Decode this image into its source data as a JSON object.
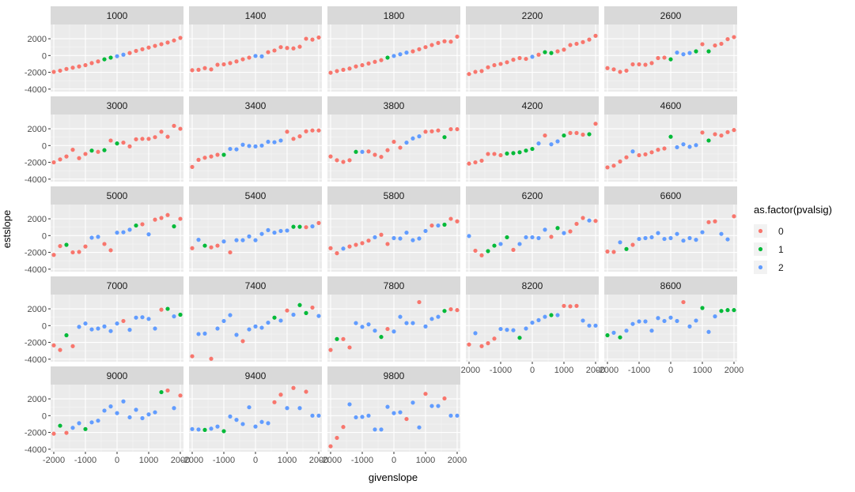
{
  "chart_data": {
    "type": "scatter",
    "title": "",
    "xlabel": "givenslope",
    "ylabel": "estslope",
    "xlim": [
      -2100,
      2100
    ],
    "ylim": [
      -4300,
      3700
    ],
    "x_ticks": [
      -2000,
      -1000,
      0,
      1000,
      2000
    ],
    "y_ticks": [
      -4000,
      -2000,
      0,
      2000
    ],
    "x_tick_labels": [
      "-2000",
      "-1000",
      "0",
      "1000",
      "2000"
    ],
    "y_tick_labels": [
      "-4000",
      "-2000",
      "0",
      "2000"
    ],
    "x": [
      -2000,
      -1800,
      -1600,
      -1400,
      -1200,
      -1000,
      -800,
      -600,
      -400,
      -200,
      0,
      200,
      400,
      600,
      800,
      1000,
      1200,
      1400,
      1600,
      1800,
      2000
    ],
    "legend": {
      "title": "as.factor(pvalsig)",
      "entries": [
        {
          "label": "0",
          "color": "#F8766D"
        },
        {
          "label": "1",
          "color": "#00BA38"
        },
        {
          "label": "2",
          "color": "#619CFF"
        }
      ],
      "position": "right"
    },
    "panels": [
      {
        "label": "1000",
        "y": [
          -1950,
          -1800,
          -1600,
          -1450,
          -1300,
          -1150,
          -900,
          -700,
          -450,
          -250,
          -80,
          100,
          300,
          550,
          750,
          950,
          1150,
          1350,
          1550,
          1800,
          2100
        ],
        "group": [
          0,
          0,
          0,
          0,
          0,
          0,
          0,
          0,
          1,
          1,
          2,
          2,
          0,
          0,
          0,
          0,
          0,
          0,
          0,
          0,
          0
        ]
      },
      {
        "label": "1400",
        "y": [
          -1750,
          -1700,
          -1500,
          -1650,
          -1100,
          -1050,
          -900,
          -700,
          -450,
          -250,
          -50,
          -100,
          400,
          600,
          1000,
          900,
          850,
          1050,
          2000,
          1900,
          2150
        ],
        "group": [
          0,
          0,
          0,
          0,
          0,
          0,
          0,
          0,
          0,
          0,
          2,
          2,
          0,
          0,
          0,
          0,
          0,
          0,
          0,
          0,
          0
        ]
      },
      {
        "label": "1800",
        "y": [
          -2050,
          -1850,
          -1700,
          -1550,
          -1300,
          -1150,
          -950,
          -750,
          -550,
          -250,
          -50,
          150,
          350,
          500,
          750,
          1000,
          1250,
          1500,
          1700,
          1650,
          2250
        ],
        "group": [
          0,
          0,
          0,
          0,
          0,
          0,
          0,
          0,
          0,
          1,
          2,
          2,
          2,
          0,
          0,
          0,
          0,
          0,
          0,
          0,
          0
        ]
      },
      {
        "label": "2200",
        "y": [
          -2200,
          -1950,
          -1850,
          -1400,
          -1150,
          -1000,
          -800,
          -500,
          -300,
          -400,
          -150,
          100,
          400,
          300,
          500,
          700,
          1250,
          1400,
          1600,
          1900,
          2350
        ],
        "group": [
          0,
          0,
          0,
          0,
          0,
          0,
          0,
          0,
          0,
          0,
          2,
          0,
          1,
          1,
          0,
          0,
          0,
          0,
          0,
          0,
          0
        ]
      },
      {
        "label": "2600",
        "y": [
          -1500,
          -1650,
          -1950,
          -1800,
          -1050,
          -1050,
          -1100,
          -900,
          -300,
          -250,
          -450,
          350,
          150,
          300,
          500,
          1350,
          500,
          1200,
          1400,
          1950,
          2200
        ],
        "group": [
          0,
          0,
          0,
          0,
          0,
          0,
          0,
          0,
          0,
          0,
          1,
          2,
          2,
          2,
          1,
          0,
          1,
          0,
          0,
          0,
          0
        ]
      },
      {
        "label": "3000",
        "y": [
          -2000,
          -1650,
          -1300,
          -500,
          -1500,
          -1000,
          -600,
          -750,
          -550,
          600,
          250,
          350,
          -100,
          750,
          800,
          800,
          1000,
          1650,
          1050,
          2350,
          2000
        ],
        "group": [
          0,
          0,
          0,
          0,
          0,
          0,
          1,
          0,
          1,
          0,
          1,
          0,
          0,
          0,
          0,
          0,
          0,
          0,
          0,
          0,
          0
        ]
      },
      {
        "label": "3400",
        "y": [
          -2550,
          -1700,
          -1450,
          -1300,
          -1100,
          -1100,
          -400,
          -450,
          100,
          -50,
          -100,
          0,
          450,
          400,
          600,
          1650,
          800,
          1100,
          1700,
          1800,
          1800
        ],
        "group": [
          0,
          0,
          0,
          0,
          0,
          1,
          2,
          2,
          2,
          2,
          2,
          2,
          2,
          2,
          2,
          0,
          0,
          0,
          0,
          0,
          0
        ]
      },
      {
        "label": "3800",
        "y": [
          -1300,
          -1750,
          -1950,
          -1750,
          -750,
          -750,
          -700,
          -1100,
          -1350,
          -550,
          450,
          -250,
          350,
          850,
          1100,
          1650,
          1700,
          1800,
          1000,
          1950,
          1950
        ],
        "group": [
          0,
          0,
          0,
          0,
          1,
          2,
          0,
          0,
          0,
          0,
          0,
          0,
          2,
          2,
          2,
          0,
          0,
          0,
          1,
          0,
          0
        ]
      },
      {
        "label": "4200",
        "y": [
          -2150,
          -2000,
          -1800,
          -1000,
          -1000,
          -1150,
          -950,
          -900,
          -800,
          -600,
          -400,
          250,
          1200,
          150,
          500,
          1200,
          1500,
          1500,
          1300,
          1350,
          2600
        ],
        "group": [
          0,
          0,
          0,
          0,
          0,
          0,
          1,
          1,
          1,
          1,
          1,
          2,
          0,
          2,
          2,
          1,
          0,
          0,
          0,
          1,
          0
        ]
      },
      {
        "label": "4600",
        "y": [
          -2600,
          -2400,
          -1900,
          -1400,
          -700,
          -1150,
          -1050,
          -800,
          -500,
          -350,
          1050,
          -200,
          150,
          -150,
          50,
          1550,
          600,
          1350,
          1200,
          1600,
          1850
        ],
        "group": [
          0,
          0,
          0,
          0,
          2,
          0,
          0,
          0,
          0,
          0,
          1,
          2,
          2,
          2,
          2,
          0,
          1,
          0,
          0,
          0,
          0
        ]
      },
      {
        "label": "5000",
        "y": [
          -2300,
          -1250,
          -1100,
          -2000,
          -1950,
          -1300,
          -250,
          -150,
          -1000,
          -1750,
          350,
          400,
          700,
          1200,
          1350,
          150,
          1900,
          2100,
          2450,
          1100,
          2000
        ],
        "group": [
          0,
          0,
          1,
          0,
          0,
          0,
          2,
          2,
          0,
          0,
          2,
          2,
          2,
          1,
          0,
          2,
          0,
          0,
          0,
          1,
          0
        ]
      },
      {
        "label": "5400",
        "y": [
          -1500,
          -500,
          -1200,
          -1400,
          -1200,
          -700,
          -2000,
          -550,
          -550,
          -100,
          -550,
          200,
          650,
          350,
          550,
          600,
          1050,
          1050,
          1000,
          1100,
          1500
        ],
        "group": [
          0,
          2,
          1,
          0,
          0,
          2,
          0,
          2,
          2,
          2,
          2,
          2,
          2,
          2,
          2,
          2,
          1,
          1,
          0,
          2,
          0
        ]
      },
      {
        "label": "5800",
        "y": [
          -1500,
          -2100,
          -1550,
          -1300,
          -1100,
          -900,
          -600,
          -200,
          100,
          -1000,
          -300,
          -350,
          350,
          -550,
          -350,
          550,
          1200,
          1200,
          1300,
          2000,
          1700
        ],
        "group": [
          0,
          0,
          2,
          0,
          0,
          0,
          0,
          2,
          0,
          0,
          2,
          2,
          2,
          2,
          2,
          2,
          0,
          2,
          1,
          0,
          0
        ]
      },
      {
        "label": "6200",
        "y": [
          -50,
          -1800,
          -2350,
          -1850,
          -1200,
          -1000,
          -200,
          -1700,
          -1000,
          -200,
          -200,
          -300,
          700,
          -150,
          900,
          300,
          500,
          1400,
          2100,
          1800,
          1750
        ],
        "group": [
          2,
          0,
          0,
          1,
          1,
          2,
          1,
          0,
          2,
          2,
          2,
          2,
          2,
          0,
          1,
          2,
          0,
          0,
          0,
          2,
          0
        ]
      },
      {
        "label": "6600",
        "y": [
          -1900,
          -1950,
          -800,
          -1600,
          -1100,
          -400,
          -300,
          -200,
          300,
          -400,
          -300,
          200,
          -600,
          -300,
          -500,
          400,
          1600,
          1700,
          200,
          -450,
          2300
        ],
        "group": [
          0,
          0,
          2,
          1,
          0,
          2,
          2,
          2,
          2,
          2,
          2,
          2,
          2,
          2,
          2,
          2,
          0,
          0,
          2,
          2,
          0
        ]
      },
      {
        "label": "7000",
        "y": [
          -2350,
          -2900,
          -1150,
          -2450,
          -150,
          250,
          -450,
          -350,
          -100,
          -650,
          250,
          550,
          -500,
          950,
          1000,
          800,
          -350,
          1900,
          2000,
          1100,
          1300
        ],
        "group": [
          0,
          0,
          1,
          0,
          2,
          2,
          2,
          2,
          2,
          2,
          2,
          0,
          2,
          2,
          2,
          2,
          2,
          0,
          1,
          2,
          1
        ]
      },
      {
        "label": "7400",
        "y": [
          -3650,
          -1000,
          -950,
          -3950,
          -350,
          550,
          1250,
          -1100,
          -1850,
          -450,
          -100,
          -250,
          350,
          950,
          600,
          1800,
          1300,
          2450,
          1500,
          2150,
          1150
        ],
        "group": [
          0,
          2,
          2,
          0,
          2,
          2,
          2,
          2,
          0,
          2,
          2,
          2,
          2,
          1,
          2,
          0,
          2,
          1,
          1,
          0,
          2
        ]
      },
      {
        "label": "7800",
        "y": [
          -2900,
          -1600,
          -1600,
          -2600,
          300,
          -150,
          150,
          -600,
          -1350,
          -400,
          -700,
          1050,
          300,
          300,
          2800,
          -100,
          800,
          1050,
          1750,
          1950,
          1850
        ],
        "group": [
          0,
          1,
          0,
          0,
          2,
          2,
          2,
          2,
          1,
          0,
          2,
          2,
          2,
          2,
          0,
          2,
          2,
          2,
          1,
          0,
          0
        ]
      },
      {
        "label": "8200",
        "y": [
          -2250,
          -900,
          -2450,
          -2100,
          -1550,
          -400,
          -500,
          -550,
          -1450,
          -350,
          350,
          650,
          1050,
          1250,
          1250,
          2350,
          2300,
          2350,
          600,
          0,
          0
        ],
        "group": [
          0,
          2,
          0,
          0,
          0,
          2,
          2,
          2,
          1,
          2,
          2,
          2,
          2,
          1,
          2,
          0,
          0,
          0,
          2,
          2,
          2
        ]
      },
      {
        "label": "8600",
        "y": [
          -1150,
          -850,
          -1400,
          -600,
          200,
          500,
          500,
          -600,
          900,
          550,
          950,
          550,
          2800,
          -100,
          600,
          2100,
          -750,
          1100,
          1750,
          1850,
          1850
        ],
        "group": [
          1,
          2,
          1,
          2,
          2,
          2,
          2,
          2,
          2,
          2,
          2,
          2,
          0,
          2,
          2,
          1,
          2,
          2,
          1,
          1,
          1
        ]
      },
      {
        "label": "9000",
        "y": [
          -2150,
          -1200,
          -2050,
          -1450,
          -900,
          -1600,
          -800,
          -600,
          600,
          1100,
          300,
          1700,
          -200,
          700,
          -300,
          150,
          400,
          2800,
          3000,
          900,
          2400
        ],
        "group": [
          0,
          1,
          0,
          2,
          2,
          1,
          2,
          2,
          2,
          2,
          2,
          2,
          2,
          2,
          2,
          2,
          2,
          1,
          0,
          2,
          0
        ]
      },
      {
        "label": "9400",
        "y": [
          -1600,
          -1650,
          -1700,
          -1550,
          -1300,
          -1850,
          -100,
          -500,
          -1000,
          1000,
          -1300,
          -750,
          -900,
          1600,
          2500,
          900,
          3300,
          900,
          2850,
          0,
          0
        ],
        "group": [
          2,
          2,
          1,
          2,
          2,
          1,
          2,
          2,
          2,
          2,
          2,
          2,
          2,
          0,
          0,
          2,
          0,
          2,
          0,
          2,
          2
        ]
      },
      {
        "label": "9800",
        "y": [
          -3650,
          -2650,
          -1350,
          1350,
          -200,
          -150,
          0,
          -1650,
          -1650,
          1050,
          300,
          400,
          -400,
          1550,
          -1400,
          2600,
          1150,
          1150,
          2050,
          0,
          0
        ],
        "group": [
          0,
          0,
          0,
          2,
          2,
          2,
          2,
          2,
          2,
          2,
          2,
          2,
          0,
          2,
          2,
          0,
          2,
          2,
          0,
          2,
          2
        ]
      }
    ]
  }
}
